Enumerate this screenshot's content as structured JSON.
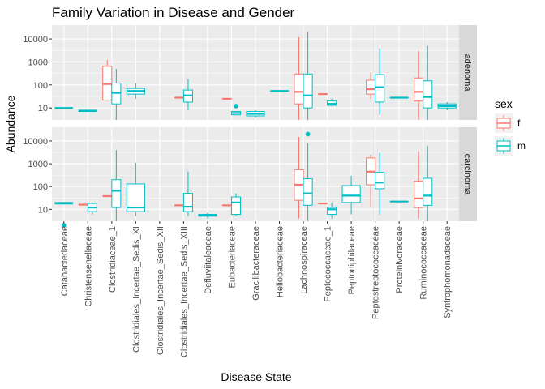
{
  "chart_data": {
    "type": "boxplot",
    "title": "Family Variation in Disease and Gender",
    "xlabel": "Disease State",
    "ylabel": "Abundance",
    "y_scale": "log10",
    "ylim": [
      3,
      40000
    ],
    "y_ticks": [
      10,
      100,
      1000,
      10000
    ],
    "y_tick_labels": [
      "10",
      "100",
      "1000",
      "10000"
    ],
    "grid": true,
    "legend": {
      "title": "sex",
      "position": "right",
      "entries": [
        {
          "key": "f",
          "label": "f",
          "color": "#F8766D"
        },
        {
          "key": "m",
          "label": "m",
          "color": "#00BFC4"
        }
      ]
    },
    "categories": [
      "Catabacteriaceae",
      "Christensenellaceae",
      "Clostridiaceae_1",
      "Clostridiales_Incertae_Sedis_XI",
      "Clostridiales_Incertae_Sedis_XII",
      "Clostridiales_Incertae_Sedis_XIII",
      "Defluviitaleaceae",
      "Eubacteriaceae",
      "Gracilibacteraceae",
      "Heliobacteriaceae",
      "Lachnospiraceae",
      "Peptococcaceae_1",
      "Peptoniphilaceae",
      "Peptostreptococcaceae",
      "Proteinivoraceae",
      "Ruminococcaceae",
      "Syntrophomonadaceae"
    ],
    "facets": [
      {
        "label": "adenoma",
        "boxes": [
          {
            "category": 0,
            "sex": "m",
            "min": 10,
            "q1": 10,
            "median": 10,
            "q3": 10,
            "max": 10,
            "outliers": []
          },
          {
            "category": 1,
            "sex": "m",
            "min": 7,
            "q1": 7,
            "median": 7.5,
            "q3": 8,
            "max": 8,
            "outliers": []
          },
          {
            "category": 2,
            "sex": "f",
            "min": 20,
            "q1": 22,
            "median": 110,
            "q3": 650,
            "max": 1200,
            "outliers": []
          },
          {
            "category": 2,
            "sex": "m",
            "min": 3,
            "q1": 15,
            "median": 45,
            "q3": 120,
            "max": 500,
            "outliers": []
          },
          {
            "category": 3,
            "sex": "m",
            "min": 25,
            "q1": 40,
            "median": 55,
            "q3": 70,
            "max": 120,
            "outliers": []
          },
          {
            "category": 5,
            "sex": "f",
            "min": 28,
            "q1": 28,
            "median": 28,
            "q3": 28,
            "max": 28,
            "outliers": []
          },
          {
            "category": 5,
            "sex": "m",
            "min": 8,
            "q1": 18,
            "median": 35,
            "q3": 60,
            "max": 180,
            "outliers": []
          },
          {
            "category": 7,
            "sex": "f",
            "min": 25,
            "q1": 25,
            "median": 25,
            "q3": 25,
            "max": 25,
            "outliers": []
          },
          {
            "category": 7,
            "sex": "m",
            "min": 5,
            "q1": 5,
            "median": 6,
            "q3": 7,
            "max": 7,
            "outliers": [
              12
            ]
          },
          {
            "category": 8,
            "sex": "m",
            "min": 4,
            "q1": 4.5,
            "median": 5.5,
            "q3": 7,
            "max": 8,
            "outliers": []
          },
          {
            "category": 9,
            "sex": "m",
            "min": 55,
            "q1": 55,
            "median": 55,
            "q3": 55,
            "max": 55,
            "outliers": []
          },
          {
            "category": 10,
            "sex": "f",
            "min": 3,
            "q1": 15,
            "median": 50,
            "q3": 300,
            "max": 12000,
            "outliers": []
          },
          {
            "category": 10,
            "sex": "m",
            "min": 3,
            "q1": 10,
            "median": 35,
            "q3": 300,
            "max": 20000,
            "outliers": []
          },
          {
            "category": 11,
            "sex": "f",
            "min": 40,
            "q1": 40,
            "median": 40,
            "q3": 40,
            "max": 40,
            "outliers": []
          },
          {
            "category": 11,
            "sex": "m",
            "min": 12,
            "q1": 13,
            "median": 15,
            "q3": 20,
            "max": 25,
            "outliers": []
          },
          {
            "category": 13,
            "sex": "f",
            "min": 25,
            "q1": 40,
            "median": 65,
            "q3": 160,
            "max": 350,
            "outliers": []
          },
          {
            "category": 13,
            "sex": "m",
            "min": 5,
            "q1": 18,
            "median": 80,
            "q3": 280,
            "max": 4000,
            "outliers": []
          },
          {
            "category": 14,
            "sex": "m",
            "min": 28,
            "q1": 28,
            "median": 28,
            "q3": 28,
            "max": 28,
            "outliers": []
          },
          {
            "category": 15,
            "sex": "f",
            "min": 3,
            "q1": 20,
            "median": 50,
            "q3": 200,
            "max": 3000,
            "outliers": []
          },
          {
            "category": 15,
            "sex": "m",
            "min": 3,
            "q1": 10,
            "median": 30,
            "q3": 150,
            "max": 5000,
            "outliers": []
          },
          {
            "category": 16,
            "sex": "m",
            "min": 8,
            "q1": 10,
            "median": 12,
            "q3": 15,
            "max": 18,
            "outliers": []
          }
        ]
      },
      {
        "label": "carcinoma",
        "boxes": [
          {
            "category": 0,
            "sex": "m",
            "min": 18,
            "q1": 18,
            "median": 18,
            "q3": 20,
            "max": 20,
            "outliers": [
              2
            ]
          },
          {
            "category": 1,
            "sex": "f",
            "min": 16,
            "q1": 16,
            "median": 16,
            "q3": 16,
            "max": 16,
            "outliers": []
          },
          {
            "category": 1,
            "sex": "m",
            "min": 6,
            "q1": 8,
            "median": 12,
            "q3": 18,
            "max": 20,
            "outliers": []
          },
          {
            "category": 2,
            "sex": "f",
            "min": 38,
            "q1": 38,
            "median": 38,
            "q3": 38,
            "max": 38,
            "outliers": []
          },
          {
            "category": 2,
            "sex": "m",
            "min": 3,
            "q1": 12,
            "median": 65,
            "q3": 200,
            "max": 4000,
            "outliers": []
          },
          {
            "category": 3,
            "sex": "m",
            "min": 5,
            "q1": 8,
            "median": 12,
            "q3": 130,
            "max": 1100,
            "outliers": []
          },
          {
            "category": 5,
            "sex": "f",
            "min": 15,
            "q1": 15,
            "median": 15,
            "q3": 15,
            "max": 15,
            "outliers": []
          },
          {
            "category": 5,
            "sex": "m",
            "min": 5,
            "q1": 8,
            "median": 13,
            "q3": 50,
            "max": 450,
            "outliers": []
          },
          {
            "category": 6,
            "sex": "m",
            "min": 4,
            "q1": 5,
            "median": 5.5,
            "q3": 6,
            "max": 7,
            "outliers": []
          },
          {
            "category": 7,
            "sex": "f",
            "min": 15,
            "q1": 15,
            "median": 15,
            "q3": 15,
            "max": 15,
            "outliers": []
          },
          {
            "category": 7,
            "sex": "m",
            "min": 5,
            "q1": 6,
            "median": 20,
            "q3": 35,
            "max": 50,
            "outliers": []
          },
          {
            "category": 10,
            "sex": "f",
            "min": 4,
            "q1": 25,
            "median": 120,
            "q3": 550,
            "max": 15000,
            "outliers": []
          },
          {
            "category": 10,
            "sex": "m",
            "min": 3,
            "q1": 15,
            "median": 50,
            "q3": 220,
            "max": 8000,
            "outliers": [
              20000
            ]
          },
          {
            "category": 11,
            "sex": "f",
            "min": 18,
            "q1": 18,
            "median": 18,
            "q3": 18,
            "max": 18,
            "outliers": []
          },
          {
            "category": 11,
            "sex": "m",
            "min": 4,
            "q1": 6,
            "median": 10,
            "q3": 12,
            "max": 20,
            "outliers": []
          },
          {
            "category": 12,
            "sex": "m",
            "min": 6,
            "q1": 20,
            "median": 40,
            "q3": 110,
            "max": 300,
            "outliers": []
          },
          {
            "category": 13,
            "sex": "f",
            "min": 12,
            "q1": 120,
            "median": 450,
            "q3": 1800,
            "max": 2500,
            "outliers": []
          },
          {
            "category": 13,
            "sex": "m",
            "min": 6,
            "q1": 80,
            "median": 150,
            "q3": 420,
            "max": 3000,
            "outliers": []
          },
          {
            "category": 14,
            "sex": "m",
            "min": 22,
            "q1": 22,
            "median": 22,
            "q3": 22,
            "max": 22,
            "outliers": []
          },
          {
            "category": 15,
            "sex": "f",
            "min": 4,
            "q1": 12,
            "median": 30,
            "q3": 170,
            "max": 3500,
            "outliers": []
          },
          {
            "category": 15,
            "sex": "m",
            "min": 3,
            "q1": 15,
            "median": 40,
            "q3": 230,
            "max": 6000,
            "outliers": []
          }
        ]
      }
    ]
  }
}
